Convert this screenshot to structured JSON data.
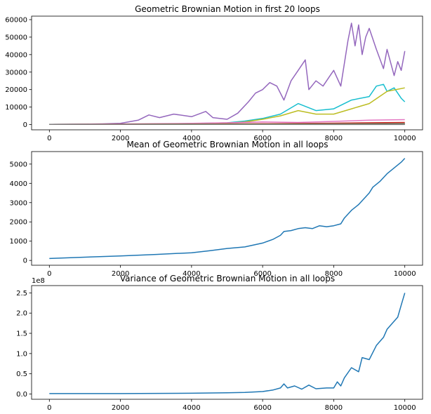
{
  "chart_data": [
    {
      "type": "line",
      "title": "Geometric Brownian Motion in first 20 loops",
      "xlabel": "",
      "ylabel": "",
      "xlim": [
        -500,
        10500
      ],
      "ylim": [
        -3000,
        62000
      ],
      "x_ticks": [
        0,
        2000,
        4000,
        6000,
        8000,
        10000
      ],
      "y_ticks": [
        0,
        10000,
        20000,
        30000,
        40000,
        50000,
        60000
      ],
      "y_tick_labels": [
        "0",
        "10000",
        "20000",
        "30000",
        "40000",
        "50000",
        "60000"
      ],
      "series": [
        {
          "color": "#9467bd",
          "x": [
            0,
            500,
            1000,
            1500,
            2000,
            2500,
            2800,
            3100,
            3500,
            4000,
            4400,
            4600,
            5000,
            5300,
            5600,
            5800,
            6000,
            6200,
            6400,
            6600,
            6800,
            7000,
            7200,
            7300,
            7500,
            7700,
            7900,
            8000,
            8200,
            8400,
            8500,
            8600,
            8700,
            8800,
            8900,
            9000,
            9200,
            9400,
            9500,
            9700,
            9800,
            9900,
            10000
          ],
          "values": [
            100,
            150,
            250,
            400,
            700,
            2500,
            5500,
            4000,
            6000,
            4500,
            7500,
            4000,
            3000,
            6500,
            13000,
            18000,
            20000,
            24000,
            22000,
            14000,
            25000,
            31000,
            37000,
            20000,
            25000,
            22000,
            28000,
            31000,
            22000,
            48000,
            58000,
            45000,
            57000,
            40000,
            50000,
            55000,
            43000,
            32000,
            43000,
            28000,
            36000,
            31000,
            42000
          ]
        },
        {
          "color": "#17becf",
          "x": [
            0,
            1000,
            2000,
            3000,
            4000,
            5000,
            5500,
            6000,
            6500,
            7000,
            7500,
            8000,
            8500,
            9000,
            9200,
            9400,
            9500,
            9700,
            9900,
            10000
          ],
          "values": [
            100,
            150,
            200,
            300,
            600,
            1000,
            2000,
            3500,
            6000,
            12000,
            8000,
            9000,
            14000,
            16000,
            22000,
            23000,
            19000,
            21000,
            15000,
            13000
          ]
        },
        {
          "color": "#bcbd22",
          "x": [
            0,
            1000,
            2000,
            3000,
            4000,
            5000,
            5500,
            6000,
            6500,
            7000,
            7500,
            8000,
            8500,
            9000,
            9500,
            10000
          ],
          "values": [
            100,
            150,
            200,
            300,
            500,
            800,
            1500,
            3000,
            5000,
            8000,
            6000,
            6000,
            9000,
            12000,
            19000,
            21000
          ]
        },
        {
          "color": "#e377c2",
          "x": [
            0,
            1000,
            2000,
            3000,
            4000,
            5000,
            6000,
            7000,
            8000,
            9000,
            10000
          ],
          "values": [
            100,
            200,
            300,
            500,
            700,
            1000,
            1500,
            1200,
            1800,
            2500,
            2800
          ]
        },
        {
          "color": "#d62728",
          "x": [
            0,
            2000,
            4000,
            6000,
            8000,
            10000
          ],
          "values": [
            100,
            200,
            300,
            500,
            800,
            1200
          ]
        },
        {
          "color": "#8c564b",
          "x": [
            0,
            2000,
            4000,
            6000,
            8000,
            10000
          ],
          "values": [
            100,
            150,
            250,
            300,
            500,
            600
          ]
        },
        {
          "color": "#2ca02c",
          "x": [
            0,
            2000,
            4000,
            6000,
            8000,
            10000
          ],
          "values": [
            100,
            130,
            200,
            250,
            350,
            400
          ]
        },
        {
          "color": "#ff7f0e",
          "x": [
            0,
            2000,
            4000,
            6000,
            8000,
            10000
          ],
          "values": [
            100,
            120,
            150,
            200,
            250,
            300
          ]
        },
        {
          "color": "#1f77b4",
          "x": [
            0,
            2000,
            4000,
            6000,
            8000,
            10000
          ],
          "values": [
            100,
            110,
            130,
            160,
            180,
            200
          ]
        },
        {
          "color": "#7f7f7f",
          "x": [
            0,
            2000,
            4000,
            6000,
            8000,
            10000
          ],
          "values": [
            100,
            90,
            80,
            70,
            60,
            50
          ]
        }
      ]
    },
    {
      "type": "line",
      "title": "Mean of Geometric Brownian Motion in all loops",
      "xlabel": "",
      "ylabel": "",
      "xlim": [
        -500,
        10500
      ],
      "ylim": [
        -250,
        5650
      ],
      "x_ticks": [
        0,
        2000,
        4000,
        6000,
        8000,
        10000
      ],
      "y_ticks": [
        0,
        1000,
        2000,
        3000,
        4000,
        5000
      ],
      "y_tick_labels": [
        "0",
        "1000",
        "2000",
        "3000",
        "4000",
        "5000"
      ],
      "series": [
        {
          "color": "#1f77b4",
          "x": [
            0,
            1000,
            2000,
            3000,
            4000,
            4500,
            5000,
            5500,
            6000,
            6300,
            6500,
            6600,
            6800,
            7000,
            7200,
            7400,
            7600,
            7800,
            8000,
            8200,
            8300,
            8500,
            8700,
            8900,
            9000,
            9100,
            9300,
            9500,
            9700,
            9900,
            10000
          ],
          "values": [
            100,
            170,
            230,
            310,
            400,
            500,
            620,
            700,
            900,
            1100,
            1300,
            1500,
            1550,
            1650,
            1700,
            1650,
            1800,
            1750,
            1800,
            1900,
            2200,
            2600,
            2900,
            3300,
            3500,
            3800,
            4100,
            4500,
            4800,
            5100,
            5300
          ]
        }
      ]
    },
    {
      "type": "line",
      "title": "Variance of Geometric Brownian Motion in all loops",
      "xlabel": "",
      "ylabel": "",
      "axis_multiplier": "1e8",
      "xlim": [
        -500,
        10500
      ],
      "ylim": [
        -0.13,
        2.68
      ],
      "x_ticks": [
        0,
        2000,
        4000,
        6000,
        8000,
        10000
      ],
      "y_ticks": [
        0,
        0.5,
        1.0,
        1.5,
        2.0,
        2.5
      ],
      "y_tick_labels": [
        "0.0",
        "0.5",
        "1.0",
        "1.5",
        "2.0",
        "2.5"
      ],
      "series": [
        {
          "color": "#1f77b4",
          "x": [
            0,
            2000,
            4000,
            5000,
            5500,
            6000,
            6300,
            6500,
            6600,
            6700,
            6900,
            7100,
            7300,
            7500,
            7800,
            8000,
            8100,
            8200,
            8300,
            8500,
            8700,
            8800,
            9000,
            9200,
            9400,
            9500,
            9700,
            9800,
            9900,
            10000
          ],
          "values": [
            0.01,
            0.01,
            0.02,
            0.03,
            0.04,
            0.06,
            0.1,
            0.15,
            0.25,
            0.15,
            0.2,
            0.12,
            0.22,
            0.13,
            0.15,
            0.15,
            0.3,
            0.2,
            0.4,
            0.65,
            0.55,
            0.9,
            0.85,
            1.2,
            1.4,
            1.6,
            1.8,
            1.9,
            2.2,
            2.5
          ]
        }
      ]
    }
  ]
}
